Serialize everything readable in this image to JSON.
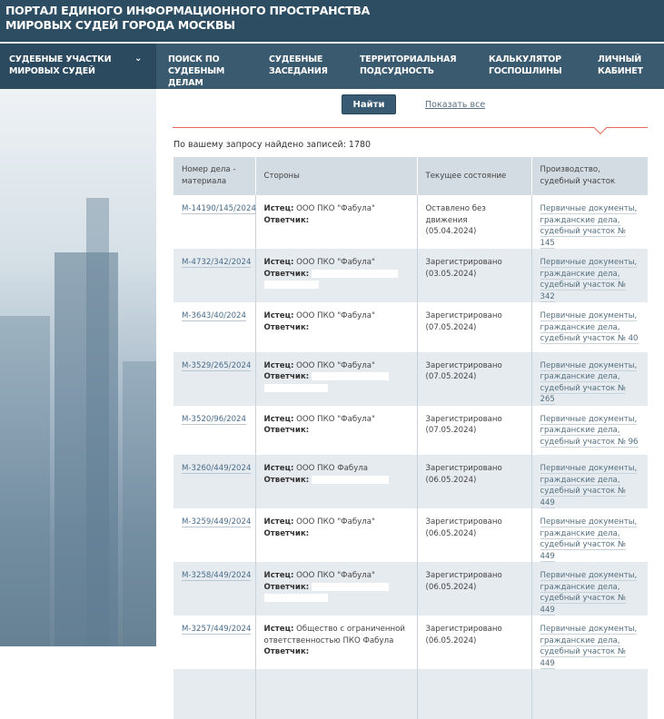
{
  "header": {
    "title_line1": "ПОРТАЛ ЕДИНОГО ИНФОРМАЦИОННОГО ПРОСТРАНСТВА",
    "title_line2": "МИРОВЫХ СУДЕЙ ГОРОДА МОСКВЫ"
  },
  "nav": [
    {
      "l1": "СУДЕБНЫЕ УЧАСТКИ",
      "l2": "МИРОВЫХ СУДЕЙ"
    },
    {
      "l1": "ПОИСК ПО",
      "l2": "СУДЕБНЫМ ДЕЛАМ"
    },
    {
      "l1": "СУДЕБНЫЕ",
      "l2": "ЗАСЕДАНИЯ"
    },
    {
      "l1": "ТЕРРИТОРИАЛЬНАЯ",
      "l2": "ПОДСУДНОСТЬ"
    },
    {
      "l1": "КАЛЬКУЛЯТОР",
      "l2": "ГОСПОШЛИНЫ"
    },
    {
      "l1": "ЛИЧНЫЙ",
      "l2": "КАБИНЕТ"
    }
  ],
  "search": {
    "find_label": "Найти",
    "show_all_label": "Показать все",
    "found_text": "По вашему запросу найдено записей: 1780"
  },
  "table": {
    "headers": [
      "Номер дела - материала",
      "Стороны",
      "Текущее состояние",
      "Производство, судебный участок"
    ],
    "plaintiff_label": "Истец:",
    "defendant_label": "Ответчик:",
    "rows": [
      {
        "case": "М-14190/145/2024",
        "plaintiff": "ООО ПКО \"Фабула\"",
        "status": "Оставлено без движения",
        "date": "(05.04.2024)",
        "p1": "Первичные документы,",
        "p2": "гражданские дела,",
        "p3": "судебный участок № 145"
      },
      {
        "case": "М-4732/342/2024",
        "plaintiff": "ООО ПКО \"Фабула\"",
        "status": "Зарегистрировано",
        "date": "(03.05.2024)",
        "p1": "Первичные документы,",
        "p2": "гражданские дела,",
        "p3": "судебный участок № 342"
      },
      {
        "case": "М-3643/40/2024",
        "plaintiff": "ООО ПКО \"Фабула\"",
        "status": "Зарегистрировано",
        "date": "(07.05.2024)",
        "p1": "Первичные документы,",
        "p2": "гражданские дела,",
        "p3": "судебный участок № 40"
      },
      {
        "case": "М-3529/265/2024",
        "plaintiff": "ООО ПКО \"Фабула\"",
        "status": "Зарегистрировано",
        "date": "(07.05.2024)",
        "p1": "Первичные документы,",
        "p2": "гражданские дела,",
        "p3": "судебный участок № 265"
      },
      {
        "case": "М-3520/96/2024",
        "plaintiff": "ООО ПКО \"Фабула\"",
        "status": "Зарегистрировано",
        "date": "(07.05.2024)",
        "p1": "Первичные документы,",
        "p2": "гражданские дела,",
        "p3": "судебный участок № 96"
      },
      {
        "case": "М-3260/449/2024",
        "plaintiff": "ООО ПКО Фабула",
        "status": "Зарегистрировано",
        "date": "(06.05.2024)",
        "p1": "Первичные документы,",
        "p2": "гражданские дела,",
        "p3": "судебный участок № 449"
      },
      {
        "case": "М-3259/449/2024",
        "plaintiff": "ООО ПКО \"Фабула\"",
        "status": "Зарегистрировано",
        "date": "(06.05.2024)",
        "p1": "Первичные документы,",
        "p2": "гражданские дела,",
        "p3": "судебный участок № 449"
      },
      {
        "case": "М-3258/449/2024",
        "plaintiff": "ООО ПКО \"Фабула\"",
        "status": "Зарегистрировано",
        "date": "(06.05.2024)",
        "p1": "Первичные документы,",
        "p2": "гражданские дела,",
        "p3": "судебный участок № 449"
      },
      {
        "case": "М-3257/449/2024",
        "plaintiff": "Общество с ограниченной ответственностью ПКО Фабула",
        "status": "Зарегистрировано",
        "date": "(06.05.2024)",
        "p1": "Первичные документы,",
        "p2": "гражданские дела,",
        "p3": "судебный участок № 449"
      }
    ]
  }
}
